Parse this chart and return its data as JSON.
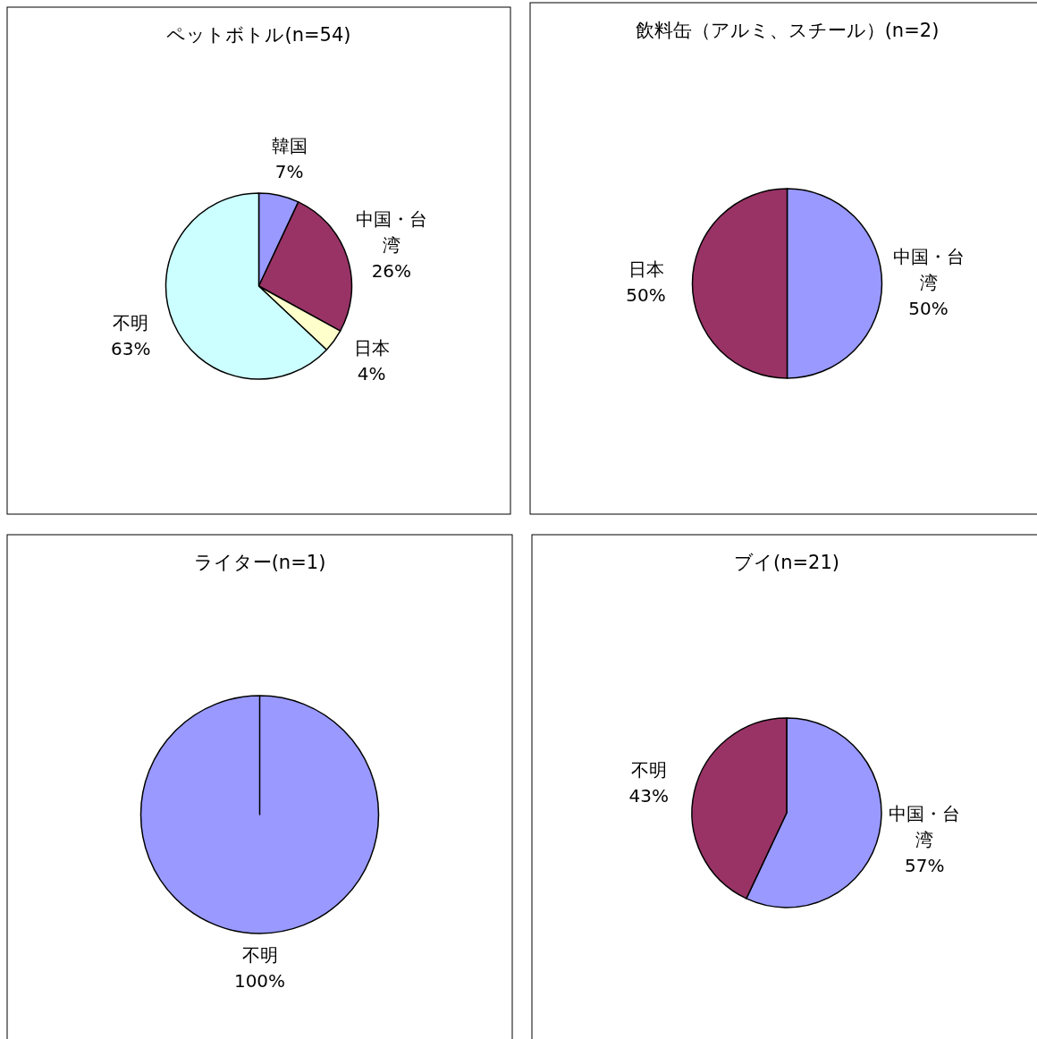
{
  "chart_data": [
    {
      "type": "pie",
      "title": "ペットボトル(n=54)",
      "categories": [
        "韓国",
        "中国・台湾",
        "日本",
        "不明"
      ],
      "values": [
        7,
        26,
        4,
        63
      ],
      "colors": [
        "#9999ff",
        "#993366",
        "#ffffcc",
        "#ccffff"
      ],
      "value_labels": [
        "7%",
        "26%",
        "4%",
        "63%"
      ]
    },
    {
      "type": "pie",
      "title": "飲料缶（アルミ、スチール）(n=2)",
      "categories": [
        "中国・台湾",
        "日本"
      ],
      "values": [
        50,
        50
      ],
      "colors": [
        "#9999ff",
        "#993366"
      ],
      "value_labels": [
        "50%",
        "50%"
      ]
    },
    {
      "type": "pie",
      "title": "ライター(n=1)",
      "categories": [
        "不明"
      ],
      "values": [
        100
      ],
      "colors": [
        "#9999ff"
      ],
      "value_labels": [
        "100%"
      ]
    },
    {
      "type": "pie",
      "title": "ブイ(n=21)",
      "categories": [
        "中国・台湾",
        "不明"
      ],
      "values": [
        57,
        43
      ],
      "colors": [
        "#9999ff",
        "#993366"
      ],
      "value_labels": [
        "57%",
        "43%"
      ]
    }
  ]
}
